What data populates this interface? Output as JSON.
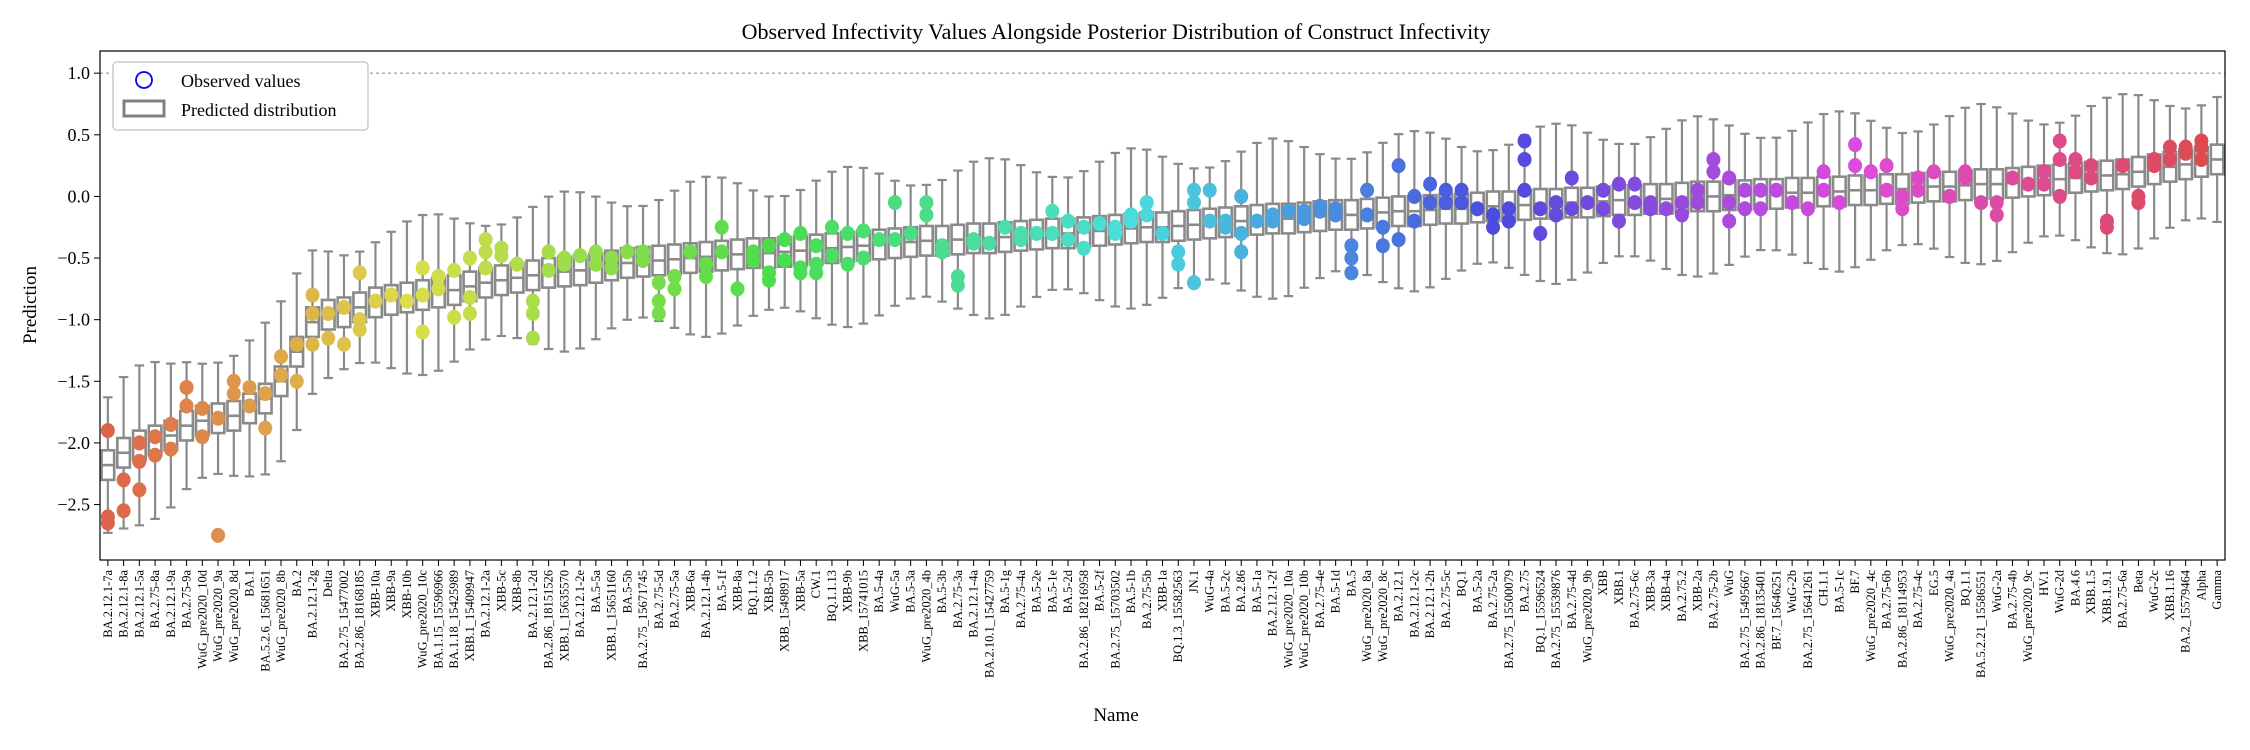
{
  "chart_data": {
    "type": "box",
    "title": "Observed Infectivity Values Alongside Posterior Distribution of Construct Infectivity",
    "xlabel": "Name",
    "ylabel": "Prediction",
    "ylim": [
      -2.95,
      1.18
    ],
    "yticks": [
      1.0,
      0.5,
      0.0,
      -0.5,
      -1.0,
      -1.5,
      -2.0,
      -2.5
    ],
    "ytick_labels": [
      "1.0",
      "0.5",
      "0.0",
      "−0.5",
      "−1.0",
      "−1.5",
      "−2.0",
      "−2.5"
    ],
    "reference_line": 1.0,
    "legend": {
      "position": "top-left",
      "entries": [
        "Observed values",
        "Predicted distribution"
      ],
      "observed_color": "#0000ff",
      "box_color": "#808080"
    },
    "categories": [
      "BA.2.12.1-7a",
      "BA.2.12.1-8a",
      "BA.2.12.1-5a",
      "BA.2.75-8a",
      "BA.2.12.1-9a",
      "BA.2.75-9a",
      "WuG_pre2020_10d",
      "WuG_pre2020_9a",
      "WuG_pre2020_8d",
      "BA.1",
      "BA.5.2.6_15681651",
      "WuG_pre2020_8b",
      "BA.2",
      "BA.2.12.1-2g",
      "Delta",
      "BA.2.75_15477002",
      "BA.2.86_18168185",
      "XBB-10a",
      "XBB-9a",
      "XBB-10b",
      "WuG_pre2020_10c",
      "BA.1.15_15596966",
      "BA.1.18_15425989",
      "XBB.1_15409947",
      "BA.2.12.1-2a",
      "XBB-5c",
      "XBB-8b",
      "BA.2.12.1-2d",
      "BA.2.86_18151526",
      "XBB.1_15635570",
      "BA.2.12.1-2e",
      "BA.5-5a",
      "XBB.1_15651160",
      "BA.5-5b",
      "BA.2.75_15671745",
      "BA.2.75-5d",
      "BA.2.75-5a",
      "XBB-6a",
      "BA.2.12.1-4b",
      "BA.5-1f",
      "XBB-8a",
      "BQ.1.1.2",
      "XBB-5b",
      "XBB_15498917",
      "XBB-5a",
      "CW.1",
      "BQ.1.1.13",
      "XBB-9b",
      "XBB_15741015",
      "BA.5-4a",
      "WuG-5a",
      "BA.5-3a",
      "WuG_pre2020_4b",
      "BA.5-3b",
      "BA.2.75-3a",
      "BA.2.12.1-4a",
      "BA.2.10.1_15427759",
      "BA.5-1g",
      "BA.2.75-4a",
      "BA.5-2e",
      "BA.5-1e",
      "BA.5-2d",
      "BA.2.86_18216958",
      "BA.5-2f",
      "BA.2.75_15703502",
      "BA.5-1b",
      "BA.2.75-5b",
      "XBB-1a",
      "BQ.1.3_15582563",
      "JN.1",
      "WuG-4a",
      "BA.5-2c",
      "BA.2.86",
      "BA.5-1a",
      "BA.2.12.1-2f",
      "WuG_pre2020_10a",
      "WuG_pre2020_10b",
      "BA.2.75-4e",
      "BA.5-1d",
      "BA.5",
      "WuG_pre2020_8a",
      "WuG_pre2020_8c",
      "BA.2.12.1",
      "BA.2.12.1-2c",
      "BA.2.12.1-2h",
      "BA.2.75-5c",
      "BQ.1",
      "BA.5-2a",
      "BA.2.75-2a",
      "BA.2.75_15500079",
      "BA.2.75",
      "BQ.1_15596524",
      "BA.2.75_15539876",
      "BA.2.75-4d",
      "WuG_pre2020_9b",
      "XBB",
      "XBB.1",
      "BA.2.75-6c",
      "XBB-3a",
      "XBB-4a",
      "BA.2.75.2",
      "XBB-2a",
      "BA.2.75-2b",
      "WuG",
      "BA.2.75_15495667",
      "BA.2.86_18135401",
      "BF.7_15646251",
      "WuG-2b",
      "BA.2.75_15641261",
      "CH.1.1",
      "BA.5-1c",
      "BF.7",
      "WuG_pre2020_4c",
      "BA.2.75-6b",
      "BA.2.86_18114953",
      "BA.2.75-4c",
      "EG.5",
      "WuG_pre2020_4a",
      "BQ.1.1",
      "BA.5.2.21_15586551",
      "WuG-2a",
      "BA.2.75-4b",
      "WuG_pre2020_9c",
      "HV.1",
      "WuG-2d",
      "BA.4.6",
      "XBB.1.5",
      "XBB.1.9.1",
      "BA.2.75-6a",
      "Beta",
      "WuG-2c",
      "XBB.1.16",
      "BA.2_15579464",
      "Alpha",
      "Gamma"
    ],
    "box_median": [
      -2.18,
      -2.08,
      -2.02,
      -1.98,
      -1.94,
      -1.86,
      -1.82,
      -1.8,
      -1.78,
      -1.72,
      -1.64,
      -1.5,
      -1.26,
      -1.02,
      -0.96,
      -0.94,
      -0.9,
      -0.86,
      -0.84,
      -0.82,
      -0.8,
      -0.78,
      -0.76,
      -0.73,
      -0.7,
      -0.68,
      -0.66,
      -0.64,
      -0.62,
      -0.61,
      -0.6,
      -0.58,
      -0.56,
      -0.54,
      -0.53,
      -0.52,
      -0.51,
      -0.5,
      -0.49,
      -0.48,
      -0.47,
      -0.46,
      -0.46,
      -0.45,
      -0.44,
      -0.43,
      -0.42,
      -0.41,
      -0.4,
      -0.39,
      -0.38,
      -0.37,
      -0.36,
      -0.36,
      -0.35,
      -0.34,
      -0.34,
      -0.33,
      -0.32,
      -0.31,
      -0.3,
      -0.3,
      -0.29,
      -0.28,
      -0.27,
      -0.26,
      -0.25,
      -0.25,
      -0.24,
      -0.23,
      -0.22,
      -0.21,
      -0.2,
      -0.19,
      -0.18,
      -0.18,
      -0.17,
      -0.16,
      -0.15,
      -0.15,
      -0.14,
      -0.13,
      -0.12,
      -0.12,
      -0.11,
      -0.1,
      -0.1,
      -0.09,
      -0.08,
      -0.08,
      -0.07,
      -0.06,
      -0.06,
      -0.05,
      -0.05,
      -0.04,
      -0.03,
      -0.03,
      -0.02,
      -0.02,
      -0.01,
      0.0,
      0.0,
      0.01,
      0.01,
      0.02,
      0.02,
      0.03,
      0.03,
      0.04,
      0.04,
      0.05,
      0.05,
      0.06,
      0.06,
      0.07,
      0.08,
      0.08,
      0.09,
      0.1,
      0.1,
      0.11,
      0.12,
      0.13,
      0.14,
      0.15,
      0.16,
      0.17,
      0.18,
      0.2,
      0.22,
      0.24,
      0.26,
      0.28,
      0.3,
      0.32
    ],
    "observed": [
      [
        -1.9,
        -2.6,
        -2.65
      ],
      [
        -2.3,
        -2.55
      ],
      [
        -2.0,
        -2.15,
        -2.38
      ],
      [
        -1.95,
        -2.1
      ],
      [
        -1.85,
        -2.05
      ],
      [
        -1.55,
        -1.7
      ],
      [
        -1.72,
        -1.95
      ],
      [
        -1.8,
        -2.75
      ],
      [
        -1.5,
        -1.6
      ],
      [
        -1.55,
        -1.7
      ],
      [
        -1.6,
        -1.88
      ],
      [
        -1.3,
        -1.45
      ],
      [
        -1.2,
        -1.5
      ],
      [
        -0.8,
        -0.95,
        -1.2
      ],
      [
        -0.95,
        -1.15
      ],
      [
        -0.9,
        -1.2
      ],
      [
        -0.62,
        -1.0,
        -1.08
      ],
      [
        -0.85
      ],
      [
        -0.8
      ],
      [
        -0.85
      ],
      [
        -0.58,
        -0.8,
        -1.1
      ],
      [
        -0.65,
        -0.75
      ],
      [
        -0.6,
        -0.98
      ],
      [
        -0.5,
        -0.82,
        -0.95
      ],
      [
        -0.35,
        -0.45,
        -0.58
      ],
      [
        -0.42,
        -0.48
      ],
      [
        -0.55
      ],
      [
        -0.85,
        -0.95,
        -1.15
      ],
      [
        -0.45,
        -0.6
      ],
      [
        -0.5,
        -0.55
      ],
      [
        -0.48
      ],
      [
        -0.45,
        -0.55
      ],
      [
        -0.5,
        -0.58
      ],
      [
        -0.45
      ],
      [
        -0.45,
        -0.52
      ],
      [
        -0.7,
        -0.85,
        -0.95
      ],
      [
        -0.65,
        -0.75
      ],
      [
        -0.45
      ],
      [
        -0.55,
        -0.65
      ],
      [
        -0.25,
        -0.45
      ],
      [
        -0.75
      ],
      [
        -0.45,
        -0.52
      ],
      [
        -0.4,
        -0.62,
        -0.68
      ],
      [
        -0.35,
        -0.52
      ],
      [
        -0.3,
        -0.58,
        -0.62
      ],
      [
        -0.4,
        -0.55,
        -0.62
      ],
      [
        -0.25,
        -0.48
      ],
      [
        -0.3,
        -0.55
      ],
      [
        -0.28,
        -0.5
      ],
      [
        -0.35
      ],
      [
        -0.05,
        -0.35
      ],
      [
        -0.3
      ],
      [
        -0.05,
        -0.15
      ],
      [
        -0.4,
        -0.45
      ],
      [
        -0.65,
        -0.72
      ],
      [
        -0.35,
        -0.38
      ],
      [
        -0.38
      ],
      [
        -0.25
      ],
      [
        -0.3,
        -0.35
      ],
      [
        -0.3
      ],
      [
        -0.12,
        -0.3
      ],
      [
        -0.2,
        -0.35
      ],
      [
        -0.25,
        -0.42
      ],
      [
        -0.22
      ],
      [
        -0.25,
        -0.3
      ],
      [
        -0.15,
        -0.2
      ],
      [
        -0.05,
        -0.15
      ],
      [
        -0.3
      ],
      [
        -0.45,
        -0.55
      ],
      [
        -0.05,
        0.05,
        -0.7
      ],
      [
        0.05,
        -0.2
      ],
      [
        -0.2,
        -0.25
      ],
      [
        0.0,
        -0.3,
        -0.45
      ],
      [
        -0.2
      ],
      [
        -0.15,
        -0.2
      ],
      [
        -0.12
      ],
      [
        -0.12,
        -0.18
      ],
      [
        -0.08,
        -0.12
      ],
      [
        -0.1,
        -0.15
      ],
      [
        -0.4,
        -0.5,
        -0.62
      ],
      [
        0.05,
        -0.15
      ],
      [
        -0.25,
        -0.4
      ],
      [
        0.25,
        -0.35
      ],
      [
        0.0,
        -0.2
      ],
      [
        0.1,
        -0.05
      ],
      [
        0.05,
        -0.05
      ],
      [
        0.05,
        -0.05
      ],
      [
        -0.1
      ],
      [
        -0.15,
        -0.25
      ],
      [
        -0.1,
        -0.2
      ],
      [
        0.45,
        0.05,
        0.3
      ],
      [
        -0.1,
        -0.3
      ],
      [
        -0.05,
        -0.15
      ],
      [
        0.15,
        -0.1
      ],
      [
        -0.05
      ],
      [
        0.05,
        -0.1
      ],
      [
        0.1,
        -0.2
      ],
      [
        0.1,
        -0.05
      ],
      [
        -0.05,
        -0.1
      ],
      [
        -0.1
      ],
      [
        -0.05,
        -0.15
      ],
      [
        0.05,
        -0.05
      ],
      [
        0.3,
        0.2
      ],
      [
        0.15,
        -0.05,
        -0.2
      ],
      [
        0.05,
        -0.1
      ],
      [
        0.05,
        -0.1
      ],
      [
        0.05
      ],
      [
        -0.05
      ],
      [
        -0.1
      ],
      [
        0.2,
        0.05
      ],
      [
        -0.05
      ],
      [
        0.25,
        0.42
      ],
      [
        0.2
      ],
      [
        0.25,
        0.05
      ],
      [
        -0.1,
        0.0
      ],
      [
        0.05,
        0.15
      ],
      [
        0.2
      ],
      [
        0.0
      ],
      [
        0.2,
        0.15
      ],
      [
        -0.05
      ],
      [
        -0.15,
        -0.05
      ],
      [
        0.15
      ],
      [
        0.1
      ],
      [
        0.1,
        0.2
      ],
      [
        0.45,
        0.3,
        0.0
      ],
      [
        0.3,
        0.2
      ],
      [
        0.15,
        0.25
      ],
      [
        -0.2,
        -0.25
      ],
      [
        0.25
      ],
      [
        -0.05,
        0.0
      ],
      [
        0.25,
        0.3
      ],
      [
        0.4,
        0.3
      ],
      [
        0.4,
        0.35
      ],
      [
        0.4,
        0.45,
        0.3
      ]
    ]
  }
}
